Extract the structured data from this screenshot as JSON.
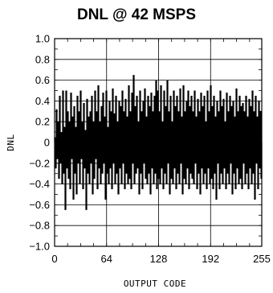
{
  "chart_data": {
    "type": "bar",
    "title": "DNL @ 42 MSPS",
    "xlabel": "OUTPUT CODE",
    "ylabel": "DNL",
    "xlim": [
      0,
      255
    ],
    "ylim": [
      -1.0,
      1.0
    ],
    "x_ticks": [
      "0",
      "64",
      "128",
      "192",
      "255"
    ],
    "y_ticks": [
      "1.0",
      "0.8",
      "0.6",
      "0.4",
      "0.2",
      "0",
      "−0.2",
      "−0.4",
      "−0.6",
      "−0.8",
      "−1.0"
    ],
    "grid": true,
    "series": [
      {
        "values": [
          0.05,
          -0.25,
          0.32,
          -0.1,
          0.2,
          -0.35,
          0.45,
          -0.2,
          0.1,
          -0.4,
          0.5,
          -0.3,
          0.15,
          -0.65,
          0.5,
          -0.25,
          0.3,
          -0.35,
          0.2,
          -0.45,
          0.48,
          -0.1,
          0.25,
          -0.55,
          0.35,
          -0.3,
          0.15,
          -0.5,
          0.45,
          -0.2,
          0.3,
          -0.4,
          0.5,
          -0.15,
          0.2,
          -0.45,
          0.38,
          -0.25,
          0.12,
          -0.65,
          0.42,
          -0.3,
          0.25,
          -0.4,
          0.3,
          -0.2,
          0.45,
          -0.5,
          0.2,
          -0.35,
          0.5,
          -0.15,
          0.3,
          -0.45,
          0.55,
          -0.25,
          0.2,
          -0.4,
          0.35,
          -0.3,
          0.48,
          -0.2,
          0.25,
          -0.55,
          0.5,
          -0.3,
          0.15,
          -0.4,
          0.4,
          -0.25,
          0.3,
          -0.45,
          0.52,
          -0.2,
          0.28,
          -0.4,
          0.45,
          -0.3,
          0.2,
          -0.5,
          0.4,
          -0.25,
          0.35,
          -0.4,
          0.5,
          -0.2,
          0.3,
          -0.45,
          0.42,
          -0.3,
          0.25,
          -0.4,
          0.55,
          -0.35,
          0.3,
          -0.45,
          0.48,
          -0.2,
          0.65,
          -0.4,
          0.35,
          -0.3,
          0.45,
          -0.25,
          0.2,
          -0.5,
          0.5,
          -0.3,
          0.3,
          -0.45,
          0.4,
          -0.2,
          0.52,
          -0.35,
          0.25,
          -0.4,
          0.45,
          -0.3,
          0.35,
          -0.5,
          0.48,
          -0.25,
          0.3,
          -0.4,
          0.45,
          -0.3,
          0.6,
          -0.45,
          0.5,
          -0.35,
          0.3,
          -0.4,
          0.55,
          -0.25,
          0.2,
          -0.45,
          0.5,
          -0.3,
          0.35,
          -0.4,
          0.6,
          -0.2,
          0.3,
          -0.5,
          0.45,
          -0.35,
          0.2,
          -0.4,
          0.5,
          -0.25,
          0.35,
          -0.45,
          0.45,
          -0.3,
          0.3,
          -0.4,
          0.52,
          -0.2,
          0.25,
          -0.5,
          0.55,
          -0.35,
          0.3,
          -0.4,
          0.4,
          -0.25,
          0.5,
          -0.45,
          0.35,
          -0.3,
          0.45,
          -0.35,
          0.3,
          -0.4,
          0.5,
          -0.2,
          0.25,
          -0.45,
          0.42,
          -0.3,
          0.3,
          -0.5,
          0.48,
          -0.25,
          0.35,
          -0.4,
          0.45,
          -0.3,
          0.2,
          -0.45,
          0.5,
          -0.25,
          0.3,
          -0.4,
          0.55,
          -0.35,
          0.35,
          -0.45,
          0.45,
          -0.3,
          0.25,
          -0.55,
          0.4,
          -0.2,
          0.3,
          -0.45,
          0.5,
          -0.3,
          0.35,
          -0.4,
          0.42,
          -0.25,
          0.2,
          -0.45,
          0.48,
          -0.3,
          0.3,
          -0.4,
          0.45,
          -0.2,
          0.35,
          -0.5,
          0.4,
          -0.3,
          0.25,
          -0.45,
          0.52,
          -0.25,
          0.3,
          -0.4,
          0.45,
          -0.35,
          0.35,
          -0.45,
          0.38,
          -0.2,
          0.3,
          -0.4,
          0.45,
          -0.3,
          0.25,
          -0.45,
          0.42,
          -0.25,
          0.35,
          -0.4,
          0.5,
          -0.3,
          0.3,
          -0.55,
          0.45,
          -0.2,
          0.25,
          -0.45,
          0.4,
          -0.25,
          0.3,
          -0.35
        ]
      }
    ]
  }
}
